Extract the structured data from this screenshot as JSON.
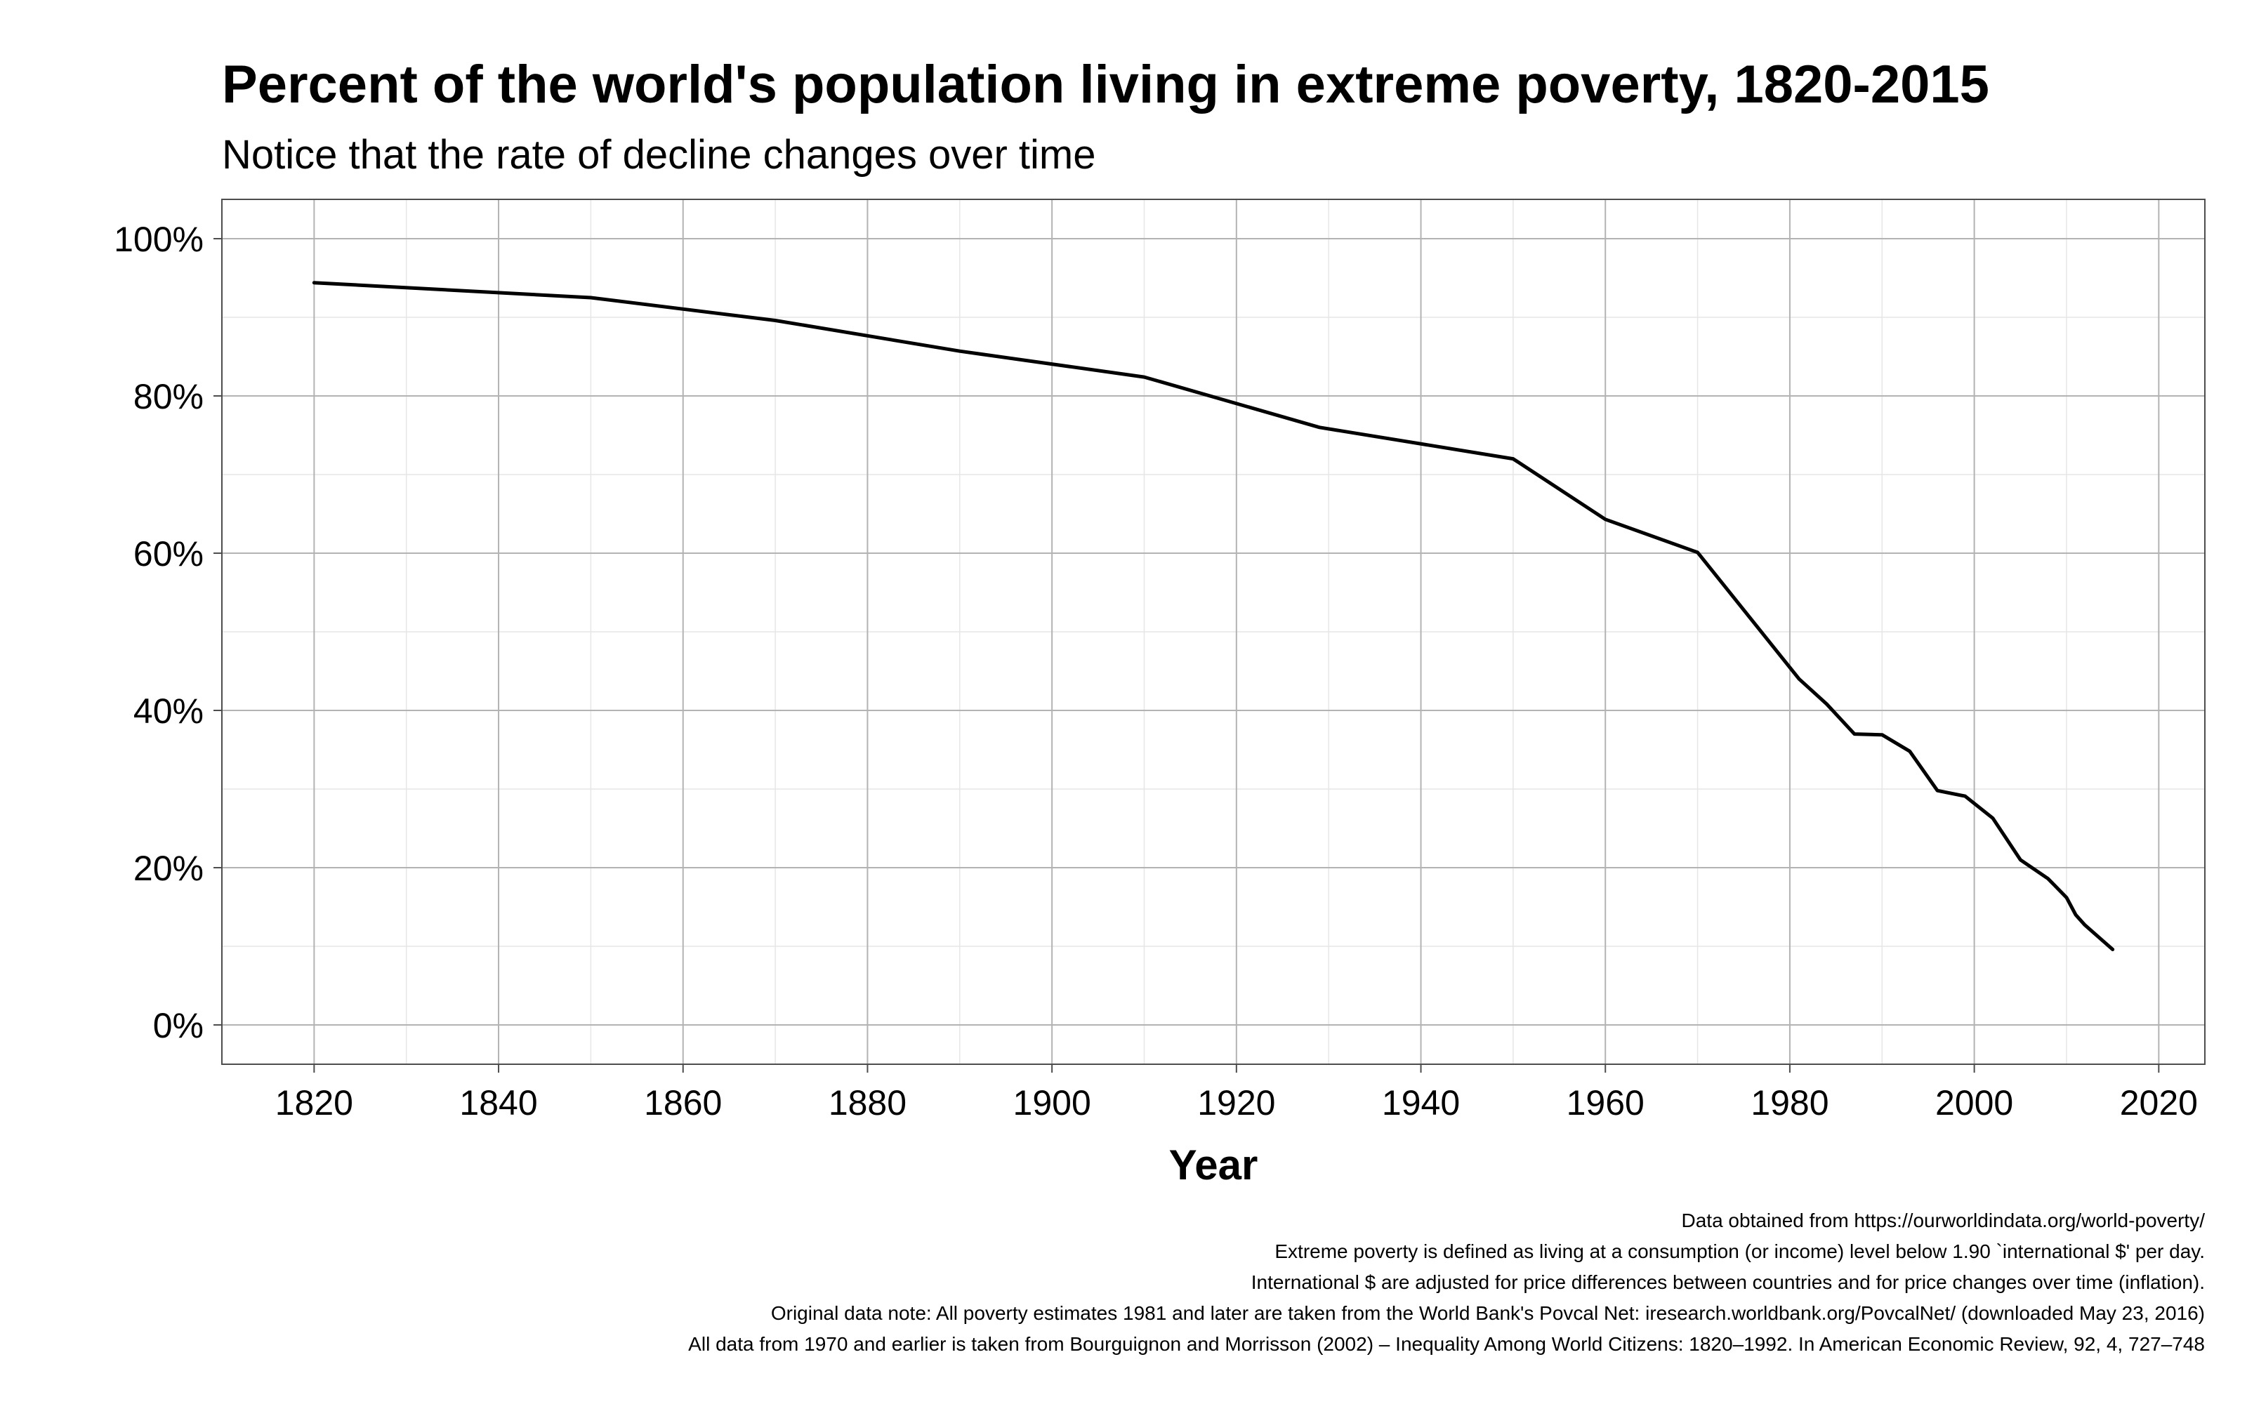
{
  "chart_data": {
    "type": "line",
    "title": "Percent of the world's population living in extreme poverty, 1820-2015",
    "subtitle": "Notice that the rate of decline changes over time",
    "xlabel": "Year",
    "ylabel": "",
    "xlim": [
      1810,
      2025
    ],
    "ylim": [
      -5,
      105
    ],
    "x_ticks": [
      1820,
      1840,
      1860,
      1880,
      1900,
      1920,
      1940,
      1960,
      1980,
      2000,
      2020
    ],
    "y_ticks": [
      0,
      20,
      40,
      60,
      80,
      100
    ],
    "y_tick_labels": [
      "0%",
      "20%",
      "40%",
      "60%",
      "80%",
      "100%"
    ],
    "grid": true,
    "series": [
      {
        "values": [
          {
            "x": 1820,
            "y": 94.4
          },
          {
            "x": 1850,
            "y": 92.5
          },
          {
            "x": 1870,
            "y": 89.6
          },
          {
            "x": 1890,
            "y": 85.7
          },
          {
            "x": 1910,
            "y": 82.4
          },
          {
            "x": 1929,
            "y": 76.0
          },
          {
            "x": 1950,
            "y": 72.0
          },
          {
            "x": 1960,
            "y": 64.3
          },
          {
            "x": 1970,
            "y": 60.1
          },
          {
            "x": 1981,
            "y": 44.0
          },
          {
            "x": 1984,
            "y": 40.8
          },
          {
            "x": 1987,
            "y": 37.0
          },
          {
            "x": 1990,
            "y": 36.9
          },
          {
            "x": 1993,
            "y": 34.8
          },
          {
            "x": 1996,
            "y": 29.8
          },
          {
            "x": 1999,
            "y": 29.1
          },
          {
            "x": 2002,
            "y": 26.3
          },
          {
            "x": 2005,
            "y": 21.0
          },
          {
            "x": 2008,
            "y": 18.6
          },
          {
            "x": 2010,
            "y": 16.2
          },
          {
            "x": 2011,
            "y": 14.0
          },
          {
            "x": 2012,
            "y": 12.7
          },
          {
            "x": 2015,
            "y": 9.6
          }
        ]
      }
    ],
    "caption": [
      "Data obtained from https://ourworldindata.org/world-poverty/",
      "Extreme poverty is defined as living at a consumption (or income) level below 1.90 `international $' per day.",
      "International $ are adjusted for price differences between countries and for price changes over time (inflation).",
      "Original data note: All poverty estimates 1981 and later are taken from the World Bank's Povcal Net: iresearch.worldbank.org/PovcalNet/ (downloaded May 23, 2016)",
      "All data from 1970 and earlier is taken from Bourguignon and Morrisson (2002) – Inequality Among World Citizens: 1820–1992. In American Economic Review, 92, 4, 727–748"
    ]
  }
}
